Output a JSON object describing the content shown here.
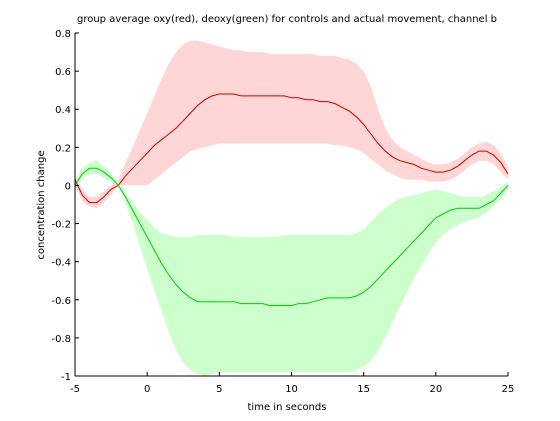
{
  "chart_data": {
    "type": "line",
    "title": "group average oxy(red), deoxy(green) for controls and actual movement, channel b",
    "xlabel": "time in seconds",
    "ylabel": "concentration change",
    "xlim": [
      -5,
      25
    ],
    "ylim": [
      -1,
      0.8
    ],
    "xticks": [
      -5,
      0,
      5,
      10,
      15,
      20,
      25
    ],
    "yticks": [
      -1,
      -0.8,
      -0.6,
      -0.4,
      -0.2,
      0,
      0.2,
      0.4,
      0.6,
      0.8
    ],
    "ytick_labels": [
      "-1",
      "-0.8",
      "-0.6",
      "-0.4",
      "-0.2",
      "0",
      "0.2",
      "0.4",
      "0.6",
      "0.8"
    ],
    "xtick_labels": [
      "-5",
      "0",
      "5",
      "10",
      "15",
      "20",
      "25"
    ],
    "grid": false,
    "x": [
      -5,
      -4.5,
      -4,
      -3.5,
      -3,
      -2.5,
      -2,
      -1.5,
      -1,
      -0.5,
      0,
      0.5,
      1,
      1.5,
      2,
      2.5,
      3,
      3.5,
      4,
      4.5,
      5,
      5.5,
      6,
      6.5,
      7,
      7.5,
      8,
      8.5,
      9,
      9.5,
      10,
      10.5,
      11,
      11.5,
      12,
      12.5,
      13,
      13.5,
      14,
      14.5,
      15,
      15.5,
      16,
      16.5,
      17,
      17.5,
      18,
      18.5,
      19,
      19.5,
      20,
      20.5,
      21,
      21.5,
      22,
      22.5,
      23,
      23.5,
      24,
      24.5,
      25
    ],
    "series": [
      {
        "color": "#cc0000",
        "band_color": "#ffd6d6",
        "mean": [
          0.03,
          -0.05,
          -0.09,
          -0.09,
          -0.06,
          -0.02,
          0.0,
          0.05,
          0.09,
          0.13,
          0.17,
          0.21,
          0.24,
          0.27,
          0.3,
          0.34,
          0.38,
          0.42,
          0.45,
          0.47,
          0.48,
          0.48,
          0.48,
          0.47,
          0.47,
          0.47,
          0.47,
          0.47,
          0.47,
          0.47,
          0.46,
          0.46,
          0.45,
          0.45,
          0.44,
          0.44,
          0.43,
          0.41,
          0.39,
          0.36,
          0.32,
          0.27,
          0.22,
          0.18,
          0.15,
          0.13,
          0.12,
          0.11,
          0.09,
          0.08,
          0.07,
          0.07,
          0.08,
          0.1,
          0.13,
          0.16,
          0.18,
          0.18,
          0.16,
          0.12,
          0.06
        ],
        "upper": [
          0.05,
          -0.02,
          -0.06,
          -0.06,
          -0.03,
          0.0,
          0.03,
          0.12,
          0.2,
          0.29,
          0.38,
          0.47,
          0.56,
          0.64,
          0.7,
          0.74,
          0.76,
          0.76,
          0.75,
          0.74,
          0.73,
          0.72,
          0.71,
          0.71,
          0.7,
          0.7,
          0.7,
          0.69,
          0.69,
          0.69,
          0.69,
          0.69,
          0.69,
          0.69,
          0.68,
          0.68,
          0.68,
          0.67,
          0.66,
          0.64,
          0.6,
          0.52,
          0.4,
          0.3,
          0.24,
          0.2,
          0.18,
          0.16,
          0.14,
          0.12,
          0.11,
          0.11,
          0.12,
          0.14,
          0.17,
          0.2,
          0.22,
          0.23,
          0.21,
          0.17,
          0.1
        ],
        "lower": [
          0.0,
          -0.08,
          -0.11,
          -0.12,
          -0.09,
          -0.05,
          0.0,
          0.0,
          0.0,
          0.0,
          0.0,
          0.03,
          0.06,
          0.09,
          0.12,
          0.15,
          0.18,
          0.19,
          0.2,
          0.21,
          0.22,
          0.22,
          0.22,
          0.22,
          0.22,
          0.22,
          0.22,
          0.22,
          0.22,
          0.22,
          0.22,
          0.22,
          0.22,
          0.22,
          0.22,
          0.22,
          0.21,
          0.21,
          0.2,
          0.19,
          0.17,
          0.14,
          0.11,
          0.08,
          0.06,
          0.04,
          0.03,
          0.03,
          0.03,
          0.02,
          0.02,
          0.02,
          0.03,
          0.05,
          0.08,
          0.11,
          0.13,
          0.13,
          0.11,
          0.07,
          0.03
        ]
      },
      {
        "color": "#00cc00",
        "band_color": "#ccffcc",
        "mean": [
          0.0,
          0.06,
          0.09,
          0.09,
          0.07,
          0.04,
          0.0,
          -0.06,
          -0.13,
          -0.2,
          -0.27,
          -0.34,
          -0.41,
          -0.47,
          -0.52,
          -0.56,
          -0.59,
          -0.61,
          -0.61,
          -0.61,
          -0.61,
          -0.61,
          -0.61,
          -0.62,
          -0.62,
          -0.62,
          -0.62,
          -0.63,
          -0.63,
          -0.63,
          -0.63,
          -0.62,
          -0.62,
          -0.61,
          -0.6,
          -0.59,
          -0.59,
          -0.59,
          -0.59,
          -0.58,
          -0.56,
          -0.53,
          -0.49,
          -0.45,
          -0.41,
          -0.37,
          -0.33,
          -0.29,
          -0.25,
          -0.21,
          -0.17,
          -0.15,
          -0.13,
          -0.12,
          -0.12,
          -0.12,
          -0.12,
          -0.1,
          -0.08,
          -0.04,
          0.0
        ],
        "upper": [
          0.02,
          0.09,
          0.12,
          0.13,
          0.1,
          0.06,
          0.02,
          -0.04,
          -0.09,
          -0.14,
          -0.18,
          -0.22,
          -0.25,
          -0.26,
          -0.27,
          -0.27,
          -0.27,
          -0.26,
          -0.26,
          -0.26,
          -0.26,
          -0.26,
          -0.27,
          -0.27,
          -0.27,
          -0.27,
          -0.27,
          -0.27,
          -0.27,
          -0.26,
          -0.26,
          -0.26,
          -0.26,
          -0.26,
          -0.26,
          -0.26,
          -0.26,
          -0.26,
          -0.26,
          -0.25,
          -0.23,
          -0.19,
          -0.15,
          -0.12,
          -0.09,
          -0.07,
          -0.06,
          -0.05,
          -0.04,
          -0.03,
          -0.02,
          -0.03,
          -0.04,
          -0.05,
          -0.06,
          -0.06,
          -0.06,
          -0.05,
          -0.03,
          -0.01,
          0.02
        ],
        "lower": [
          -0.02,
          0.04,
          0.06,
          0.06,
          0.04,
          0.02,
          0.0,
          -0.09,
          -0.2,
          -0.32,
          -0.44,
          -0.55,
          -0.66,
          -0.77,
          -0.86,
          -0.93,
          -0.97,
          -0.99,
          -1.0,
          -0.99,
          -0.98,
          -0.98,
          -0.98,
          -0.98,
          -0.98,
          -0.98,
          -0.98,
          -0.98,
          -0.98,
          -0.98,
          -0.98,
          -0.98,
          -0.98,
          -0.98,
          -0.98,
          -0.98,
          -0.98,
          -0.98,
          -0.98,
          -0.97,
          -0.95,
          -0.92,
          -0.87,
          -0.8,
          -0.72,
          -0.64,
          -0.56,
          -0.49,
          -0.42,
          -0.36,
          -0.3,
          -0.26,
          -0.23,
          -0.21,
          -0.19,
          -0.18,
          -0.17,
          -0.14,
          -0.11,
          -0.07,
          -0.02
        ]
      }
    ]
  }
}
